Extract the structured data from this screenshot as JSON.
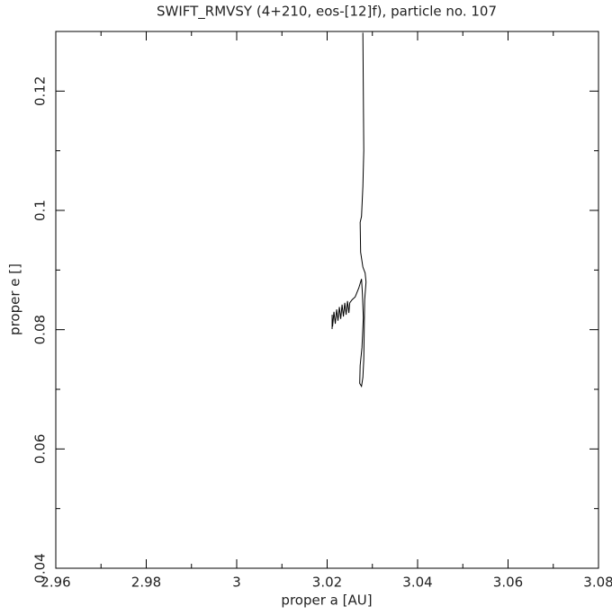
{
  "chart_data": {
    "type": "line",
    "title": "SWIFT_RMVSY (4+210, eos-[12]f), particle no. 107",
    "x_label": "proper a [AU]",
    "y_label": "proper e []",
    "xlim": [
      2.96,
      3.08
    ],
    "xticks": [
      2.96,
      2.98,
      3,
      3.02,
      3.04,
      3.06,
      3.08
    ],
    "xminor": [
      2.97,
      2.99,
      3.01,
      3.03,
      3.05,
      3.07
    ],
    "ylim": [
      0.04,
      0.13
    ],
    "yticks": [
      0.04,
      0.06,
      0.08,
      0.1,
      0.12
    ],
    "yminor": [
      0.05,
      0.07,
      0.09,
      0.11
    ],
    "color": "#000000",
    "x": [
      3.0279,
      3.028,
      3.0281,
      3.0279,
      3.0276,
      3.0273,
      3.0274,
      3.0279,
      3.0284,
      3.0286,
      3.0283,
      3.0282,
      3.0281,
      3.0279,
      3.0276,
      3.0272,
      3.0273,
      3.0277,
      3.028,
      3.0278,
      3.0276,
      3.027,
      3.0262,
      3.0255,
      3.025,
      3.0248,
      3.0245,
      3.0242,
      3.0239,
      3.0236,
      3.0233,
      3.023,
      3.0227,
      3.0224,
      3.0221,
      3.0218,
      3.0215,
      3.0212,
      3.0211,
      3.0211
    ],
    "values": [
      0.1298,
      0.12,
      0.11,
      0.104,
      0.099,
      0.098,
      0.093,
      0.0905,
      0.0895,
      0.088,
      0.085,
      0.08,
      0.075,
      0.072,
      0.0705,
      0.071,
      0.074,
      0.077,
      0.082,
      0.086,
      0.0885,
      0.087,
      0.0855,
      0.085,
      0.0845,
      0.0828,
      0.0848,
      0.0825,
      0.0845,
      0.0822,
      0.0842,
      0.0818,
      0.0838,
      0.0815,
      0.0834,
      0.081,
      0.083,
      0.0805,
      0.0825,
      0.0801
    ]
  }
}
